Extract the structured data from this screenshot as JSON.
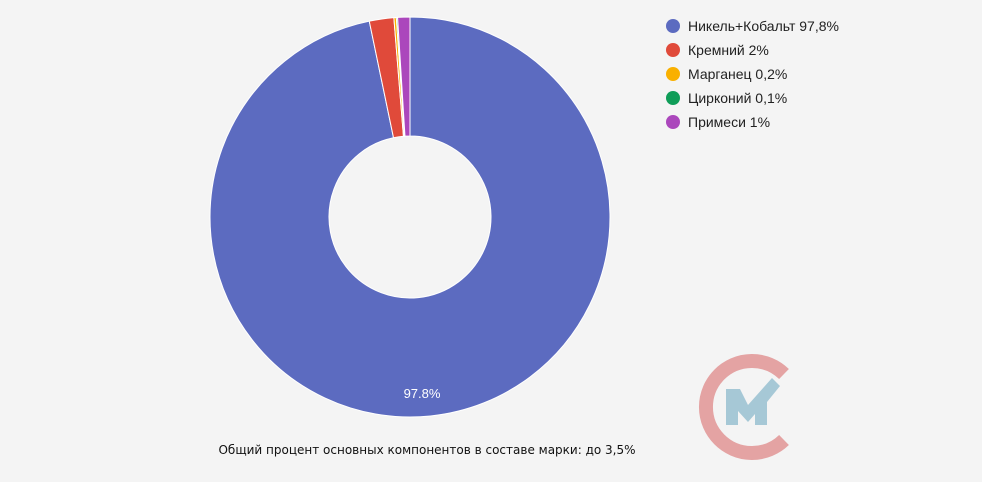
{
  "chart_data": {
    "type": "pie",
    "donut": true,
    "categories": [
      "Никель+Кобальт",
      "Кремний",
      "Марганец",
      "Цирконий",
      "Примеси"
    ],
    "values": [
      97.8,
      2,
      0.2,
      0.1,
      1
    ],
    "legend_labels": [
      "Никель+Кобальт 97,8%",
      "Кремний 2%",
      "Марганец 0,2%",
      "Цирконий 0,1%",
      "Примеси 1%"
    ],
    "colors": [
      "#5c6bc0",
      "#e04a3a",
      "#f9b000",
      "#0f9d58",
      "#ab47bc"
    ],
    "data_labels": [
      "97.8%",
      "",
      "",
      "",
      ""
    ],
    "legend_position": "top-right"
  },
  "caption": "Общий процент основных компонентов в составе марки: до 3,5%",
  "logo": {
    "icon": "cm-logo",
    "colors": [
      "#e4a3a3",
      "#a6c8d6"
    ]
  }
}
